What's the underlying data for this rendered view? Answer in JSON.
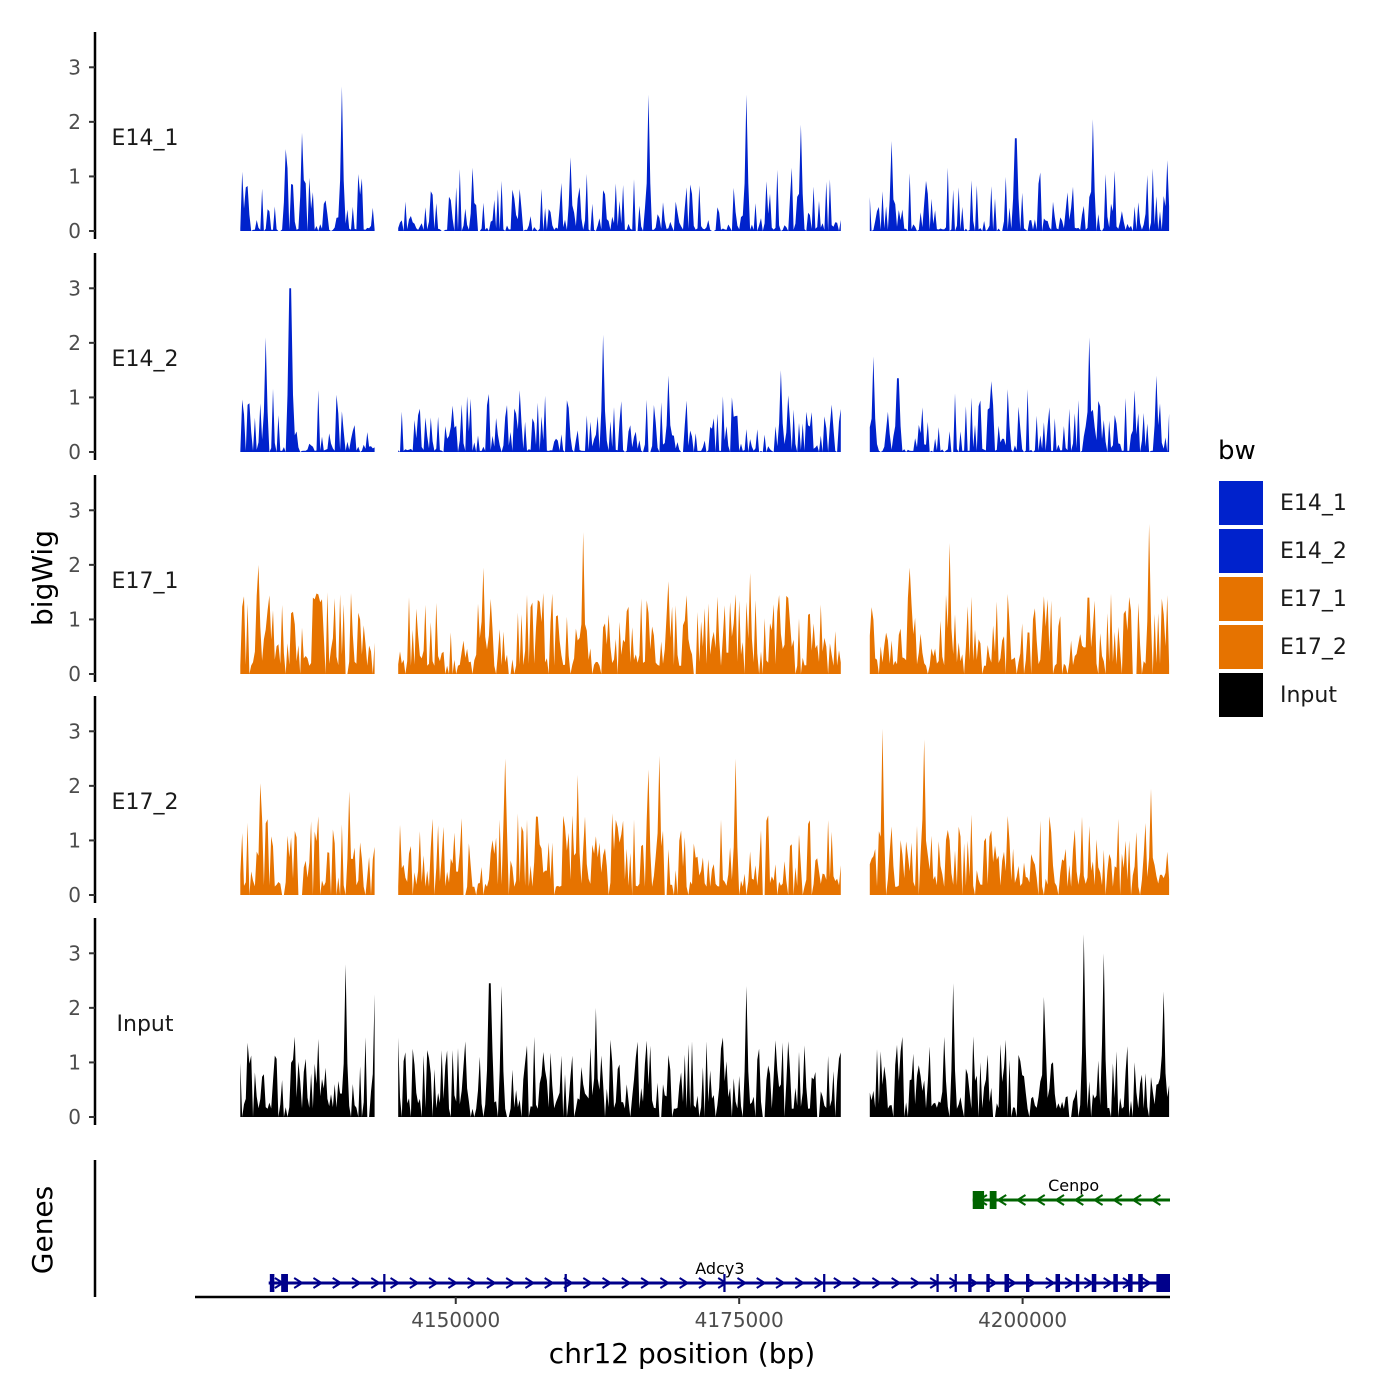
{
  "chart_data": {
    "type": "area",
    "title": "",
    "xlabel": "chr12 position (bp)",
    "ylabel": "bigWig",
    "genes_label": "Genes",
    "xlim": [
      4127000,
      4213000
    ],
    "x_ticks": [
      {
        "value": 4150000,
        "label": "4150000"
      },
      {
        "value": 4175000,
        "label": "4175000"
      },
      {
        "value": 4200000,
        "label": "4200000"
      }
    ],
    "ylim": [
      0,
      3.5
    ],
    "y_ticks": [
      {
        "value": 0,
        "label": "0"
      },
      {
        "value": 1,
        "label": "1"
      },
      {
        "value": 2,
        "label": "2"
      },
      {
        "value": 3,
        "label": "3"
      }
    ],
    "data_start": 4131000,
    "data_end": 4213000,
    "gaps": [
      [
        4143000,
        4144800
      ],
      [
        4184000,
        4186400
      ]
    ],
    "legend": {
      "title": "bw",
      "entries": [
        {
          "name": "E14_1",
          "color": "#0022CC"
        },
        {
          "name": "E14_2",
          "color": "#0022CC"
        },
        {
          "name": "E17_1",
          "color": "#E67300"
        },
        {
          "name": "E17_2",
          "color": "#E67300"
        },
        {
          "name": "Input",
          "color": "#000000"
        }
      ]
    },
    "series": [
      {
        "name": "E14_1",
        "color": "#0022CC",
        "peaks": [
          {
            "x": 4140000,
            "y": 2.65
          },
          {
            "x": 4167000,
            "y": 2.5
          },
          {
            "x": 4175600,
            "y": 2.5
          },
          {
            "x": 4135000,
            "y": 1.5
          },
          {
            "x": 4136500,
            "y": 1.8
          },
          {
            "x": 4180500,
            "y": 1.95
          },
          {
            "x": 4199400,
            "y": 1.7
          },
          {
            "x": 4206200,
            "y": 2.05
          },
          {
            "x": 4160100,
            "y": 1.35
          },
          {
            "x": 4188500,
            "y": 1.65
          },
          {
            "x": 4212800,
            "y": 1.3
          }
        ]
      },
      {
        "name": "E14_2",
        "color": "#0022CC",
        "peaks": [
          {
            "x": 4135400,
            "y": 3.0
          },
          {
            "x": 4163000,
            "y": 2.15
          },
          {
            "x": 4133200,
            "y": 2.1
          },
          {
            "x": 4186800,
            "y": 1.75
          },
          {
            "x": 4205900,
            "y": 2.1
          },
          {
            "x": 4211800,
            "y": 1.4
          },
          {
            "x": 4197300,
            "y": 1.3
          },
          {
            "x": 4168800,
            "y": 1.4
          },
          {
            "x": 4178700,
            "y": 1.5
          },
          {
            "x": 4189000,
            "y": 1.35
          }
        ]
      },
      {
        "name": "E17_1",
        "color": "#E67300",
        "peaks": [
          {
            "x": 4161300,
            "y": 2.6
          },
          {
            "x": 4211100,
            "y": 2.75
          },
          {
            "x": 4193500,
            "y": 2.4
          },
          {
            "x": 4132600,
            "y": 2.0
          },
          {
            "x": 4152400,
            "y": 1.95
          },
          {
            "x": 4176000,
            "y": 1.85
          },
          {
            "x": 4168700,
            "y": 1.7
          },
          {
            "x": 4190100,
            "y": 1.95
          },
          {
            "x": 4205800,
            "y": 1.4
          }
        ]
      },
      {
        "name": "E17_2",
        "color": "#E67300",
        "peaks": [
          {
            "x": 4187600,
            "y": 3.05
          },
          {
            "x": 4174700,
            "y": 2.5
          },
          {
            "x": 4154400,
            "y": 2.5
          },
          {
            "x": 4191300,
            "y": 2.85
          },
          {
            "x": 4168000,
            "y": 2.55
          },
          {
            "x": 4211300,
            "y": 1.95
          },
          {
            "x": 4132800,
            "y": 2.05
          },
          {
            "x": 4167000,
            "y": 2.3
          },
          {
            "x": 4160800,
            "y": 2.2
          },
          {
            "x": 4140600,
            "y": 1.9
          }
        ]
      },
      {
        "name": "Input",
        "color": "#000000",
        "peaks": [
          {
            "x": 4205400,
            "y": 3.35
          },
          {
            "x": 4207200,
            "y": 3.0
          },
          {
            "x": 4140300,
            "y": 2.8
          },
          {
            "x": 4193900,
            "y": 2.45
          },
          {
            "x": 4175600,
            "y": 2.4
          },
          {
            "x": 4153000,
            "y": 2.45
          },
          {
            "x": 4154100,
            "y": 2.4
          },
          {
            "x": 4201900,
            "y": 2.2
          },
          {
            "x": 4212400,
            "y": 2.3
          },
          {
            "x": 4162300,
            "y": 2.0
          },
          {
            "x": 4142800,
            "y": 2.25
          }
        ]
      }
    ],
    "genes": [
      {
        "name": "Cenpo",
        "strand": "-",
        "color": "#006400",
        "start": 4195600,
        "end": 4213000,
        "label_x": 4204500,
        "exons": [
          [
            4195600,
            4196600
          ],
          [
            4197100,
            4197700
          ]
        ]
      },
      {
        "name": "Adcy3",
        "strand": "+",
        "color": "#00008B",
        "start": 4133500,
        "end": 4213000,
        "label_x": 4173300,
        "exons": [
          [
            4133600,
            4134000
          ],
          [
            4134600,
            4135200
          ],
          [
            4143600,
            4143800
          ],
          [
            4159600,
            4159800
          ],
          [
            4173600,
            4173800
          ],
          [
            4182400,
            4182600
          ],
          [
            4192400,
            4192600
          ],
          [
            4194000,
            4194200
          ],
          [
            4195200,
            4195500
          ],
          [
            4196800,
            4197100
          ],
          [
            4198400,
            4198800
          ],
          [
            4200300,
            4200600
          ],
          [
            4202900,
            4203300
          ],
          [
            4204700,
            4205000
          ],
          [
            4206100,
            4206500
          ],
          [
            4208000,
            4208400
          ],
          [
            4209300,
            4209700
          ],
          [
            4210200,
            4210600
          ],
          [
            4211800,
            4213000
          ]
        ]
      }
    ]
  }
}
